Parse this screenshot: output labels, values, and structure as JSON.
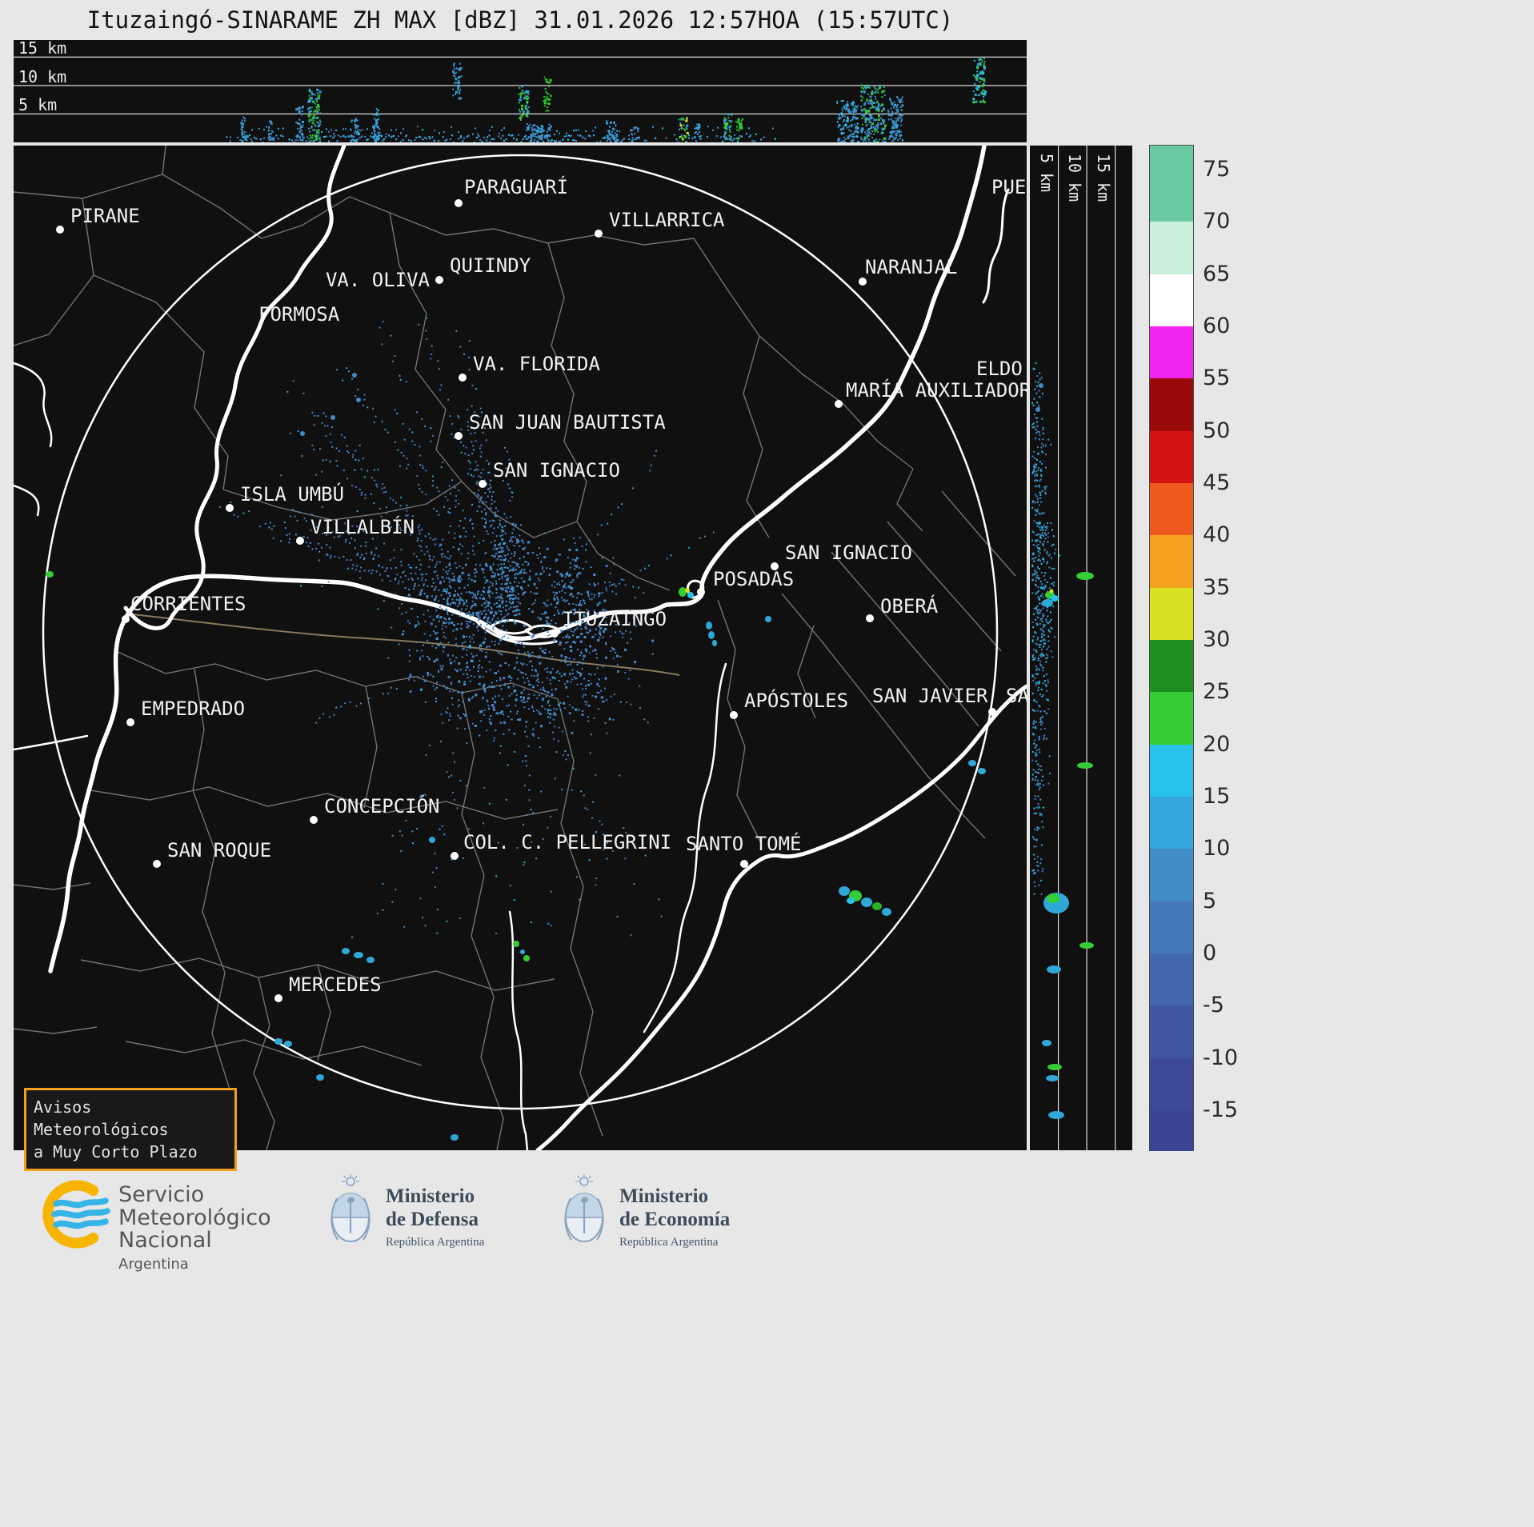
{
  "title": "Ituzaingó-SINARAME ZH MAX [dBZ] 31.01.2026 12:57HOA (15:57UTC)",
  "top_panel": {
    "labels": [
      "15 km",
      "10 km",
      "5 km"
    ]
  },
  "right_panel": {
    "labels": [
      "5 km",
      "10 km",
      "15 km"
    ]
  },
  "colorbar": {
    "unit": "dBZ",
    "ticks": [
      "75",
      "70",
      "65",
      "60",
      "55",
      "50",
      "45",
      "40",
      "35",
      "30",
      "25",
      "20",
      "15",
      "10",
      "5",
      "0",
      "-5",
      "-10",
      "-15"
    ],
    "colors_top_to_bottom": [
      "#6ac9a0",
      "#c9f0da",
      "#ffffff",
      "#f224f2",
      "#9b0a0a",
      "#d41414",
      "#ee5a1e",
      "#f5a01e",
      "#d7e021",
      "#1e8f1e",
      "#35cd35",
      "#27c3ea",
      "#33a6dc",
      "#3f8cc9",
      "#4477bb",
      "#4468b0",
      "#4156a3",
      "#3d4899"
    ]
  },
  "cities": [
    {
      "name": "PIRANE",
      "dot": [
        58,
        105
      ],
      "label": [
        71,
        96
      ],
      "anchor": "start"
    },
    {
      "name": "PARAGUARÍ",
      "dot": [
        556,
        72
      ],
      "label": [
        563,
        60
      ],
      "anchor": "start"
    },
    {
      "name": "VILLARRICA",
      "dot": [
        731,
        110
      ],
      "label": [
        744,
        101
      ],
      "anchor": "start"
    },
    {
      "name": "QUIINDY",
      "dot": [
        532,
        168
      ],
      "label": [
        545,
        158
      ],
      "anchor": "start"
    },
    {
      "name": "VA. OLIVA",
      "dot": null,
      "label": [
        520,
        176
      ],
      "anchor": "end"
    },
    {
      "name": "FORMOSA",
      "dot": null,
      "label": [
        306,
        219
      ],
      "anchor": "start"
    },
    {
      "name": "NARANJAL",
      "dot": [
        1061,
        170
      ],
      "label": [
        1064,
        160
      ],
      "anchor": "start"
    },
    {
      "name": "VA. FLORIDA",
      "dot": [
        561,
        290
      ],
      "label": [
        574,
        281
      ],
      "anchor": "start"
    },
    {
      "name": "MARÍA AUXILIADORA",
      "dot": [
        1031,
        323
      ],
      "label": [
        1040,
        314
      ],
      "anchor": "start"
    },
    {
      "name": "ELDO",
      "dot": null,
      "label": [
        1203,
        287
      ],
      "anchor": "start"
    },
    {
      "name": "SAN JUAN BAUTISTA",
      "dot": [
        556,
        363
      ],
      "label": [
        569,
        354
      ],
      "anchor": "start"
    },
    {
      "name": "SAN IGNACIO",
      "dot": [
        586,
        423
      ],
      "label": [
        599,
        414
      ],
      "anchor": "start"
    },
    {
      "name": "ISLA UMBÚ",
      "dot": [
        270,
        453
      ],
      "label": [
        283,
        444
      ],
      "anchor": "start"
    },
    {
      "name": "VILLALBÍN",
      "dot": [
        358,
        494
      ],
      "label": [
        371,
        485
      ],
      "anchor": "start"
    },
    {
      "name": "SAN IGNACIO",
      "dot": [
        951,
        526
      ],
      "label": [
        964,
        517
      ],
      "anchor": "start"
    },
    {
      "name": "POSADAS",
      "dot": [
        859,
        558
      ],
      "label": [
        874,
        550
      ],
      "anchor": "start"
    },
    {
      "name": "CORRIENTES",
      "dot": [
        140,
        592
      ],
      "label": [
        146,
        581
      ],
      "anchor": "start"
    },
    {
      "name": "OBERÁ",
      "dot": [
        1070,
        591
      ],
      "label": [
        1083,
        584
      ],
      "anchor": "start"
    },
    {
      "name": "ITUZAINGÓ",
      "dot": [
        676,
        610
      ],
      "label": [
        686,
        600
      ],
      "anchor": "start"
    },
    {
      "name": "EMPEDRADO",
      "dot": [
        146,
        721
      ],
      "label": [
        159,
        712
      ],
      "anchor": "start"
    },
    {
      "name": "APÓSTOLES",
      "dot": [
        900,
        712
      ],
      "label": [
        913,
        702
      ],
      "anchor": "start"
    },
    {
      "name": "SAN JAVIER",
      "dot": null,
      "label": [
        1073,
        696
      ],
      "anchor": "start"
    },
    {
      "name": "SAN",
      "dot": [
        1223,
        708
      ],
      "label": [
        1240,
        696
      ],
      "anchor": "start"
    },
    {
      "name": "CONCEPCIÓN",
      "dot": [
        375,
        843
      ],
      "label": [
        388,
        834
      ],
      "anchor": "start"
    },
    {
      "name": "COL. C. PELLEGRINI",
      "dot": [
        551,
        888
      ],
      "label": [
        562,
        879
      ],
      "anchor": "start"
    },
    {
      "name": "SANTO TOMÉ",
      "dot": [
        913,
        898
      ],
      "label": [
        840,
        881
      ],
      "anchor": "start"
    },
    {
      "name": "SAN ROQUE",
      "dot": [
        179,
        898
      ],
      "label": [
        192,
        889
      ],
      "anchor": "start"
    },
    {
      "name": "MERCEDES",
      "dot": [
        331,
        1066
      ],
      "label": [
        344,
        1057
      ],
      "anchor": "start"
    },
    {
      "name": "PUE",
      "dot": null,
      "label": [
        1222,
        60
      ],
      "anchor": "start"
    }
  ],
  "advisory": {
    "line1": "Avisos Meteorológicos",
    "line2": "a Muy Corto Plazo",
    "border_color": "#f0a01e"
  },
  "footer": {
    "smn_lines": [
      "Servicio",
      "Meteorológico",
      "Nacional"
    ],
    "smn_country": "Argentina",
    "defensa_title1": "Ministerio",
    "defensa_title2": "de Defensa",
    "defensa_sub": "República Argentina",
    "economia_title1": "Ministerio",
    "economia_title2": "de Economía",
    "economia_sub": "República Argentina"
  },
  "accent_colors": {
    "advisory_border": "#f0a01e",
    "smn_ring": "#f7b400",
    "smn_waves": "#35b4e5",
    "echo_blue": "#3f8cc9",
    "echo_cyan": "#27c3ea",
    "echo_green": "#35cd35",
    "echo_yellow": "#d7e021"
  }
}
